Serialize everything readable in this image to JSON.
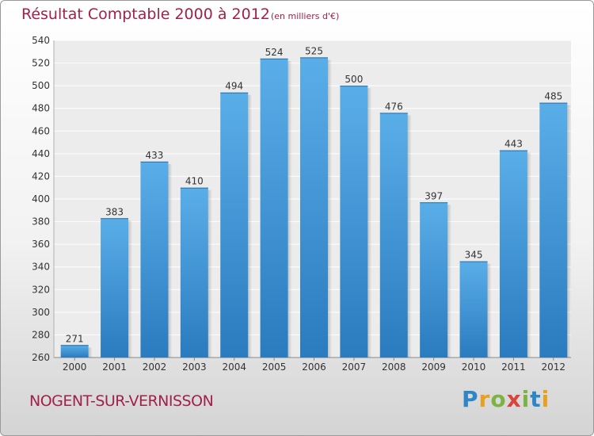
{
  "header": {
    "title": "Résultat Comptable 2000 à 2012",
    "subtitle": "(en milliers d'€)"
  },
  "footer": {
    "commune": "NOGENT-SUR-VERNISSON",
    "logo": "Proxiti"
  },
  "colors": {
    "bar_top": "#5aaee8",
    "bar_bottom": "#2a7bbf",
    "accent": "#a0224a"
  },
  "chart_data": {
    "type": "bar",
    "title": "Résultat Comptable 2000 à 2012",
    "subtitle": "(en milliers d'€)",
    "categories": [
      "2000",
      "2001",
      "2002",
      "2003",
      "2004",
      "2005",
      "2006",
      "2007",
      "2008",
      "2009",
      "2010",
      "2011",
      "2012"
    ],
    "values": [
      271,
      383,
      433,
      410,
      494,
      524,
      525,
      500,
      476,
      397,
      345,
      443,
      485
    ],
    "ylim": [
      260,
      540
    ],
    "yticks": [
      260,
      280,
      300,
      320,
      340,
      360,
      380,
      400,
      420,
      440,
      460,
      480,
      500,
      520,
      540
    ],
    "grid": true,
    "legend": "none"
  }
}
